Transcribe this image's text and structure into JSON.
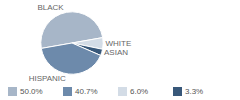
{
  "chart_data": {
    "type": "pie",
    "categories": [
      "BLACK",
      "WHITE",
      "ASIAN",
      "HISPANIC"
    ],
    "values": [
      50.0,
      6.0,
      3.3,
      40.7
    ],
    "value_labels": [
      "50.0%",
      "6.0%",
      "3.3%",
      "40.7%"
    ],
    "colors": [
      "#a7b6c8",
      "#d3dce6",
      "#38587a",
      "#6d8aab"
    ],
    "legend": "bottom"
  }
}
